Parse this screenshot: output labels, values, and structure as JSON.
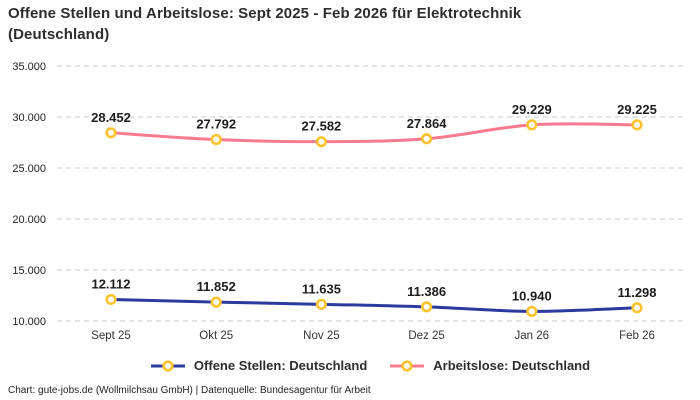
{
  "header": {
    "title": "Offene Stellen und Arbeitslose: Sept 2025 - Feb 2026 für Elektrotechnik (Deutschland)"
  },
  "footer": {
    "text": "Chart: gute-jobs.de (Wollmilchsau GmbH) | Datenquelle: Bundesagentur für Arbeit"
  },
  "chart_data": {
    "type": "line",
    "title": "Offene Stellen und Arbeitslose: Sept 2025 - Feb 2026 für Elektrotechnik (Deutschland)",
    "categories": [
      "Sept 25",
      "Okt 25",
      "Nov 25",
      "Dez 25",
      "Jan 26",
      "Feb 26"
    ],
    "series": [
      {
        "name": "Offene Stellen: Deutschland",
        "color": "#2b3a9d",
        "values": [
          12112,
          11852,
          11635,
          11386,
          10940,
          11298
        ],
        "labels": [
          "12.112",
          "11.852",
          "11.635",
          "11.386",
          "10.940",
          "11.298"
        ]
      },
      {
        "name": "Arbeitslose: Deutschland",
        "color": "#f77b8e",
        "values": [
          28452,
          27792,
          27582,
          27864,
          29229,
          29225
        ],
        "labels": [
          "28.452",
          "27.792",
          "27.582",
          "27.864",
          "29.229",
          "29.225"
        ]
      }
    ],
    "marker": {
      "ring_color": "#fcc32f",
      "fill_color": "#ffffff"
    },
    "y_ticks": [
      {
        "value": 10000,
        "label": "10.000"
      },
      {
        "value": 15000,
        "label": "15.000"
      },
      {
        "value": 20000,
        "label": "20.000"
      },
      {
        "value": 25000,
        "label": "25.000"
      },
      {
        "value": 30000,
        "label": "30.000"
      },
      {
        "value": 35000,
        "label": "35.000"
      }
    ],
    "ylim": [
      10000,
      35000
    ],
    "grid": {
      "horizontal": true,
      "style": "dashed",
      "color": "#c9c9c9"
    },
    "legend_position": "bottom"
  }
}
